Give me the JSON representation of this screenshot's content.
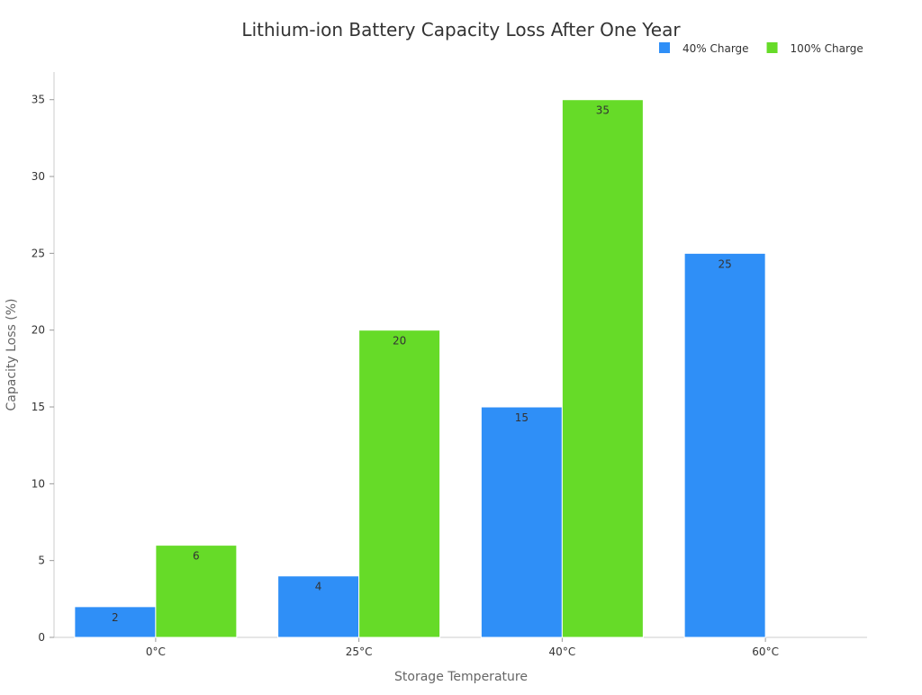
{
  "chart_data": {
    "type": "bar",
    "title": "Lithium-ion Battery Capacity Loss After One Year",
    "xlabel": "Storage Temperature",
    "ylabel": "Capacity Loss (%)",
    "categories": [
      "0°C",
      "25°C",
      "40°C",
      "60°C"
    ],
    "series": [
      {
        "name": "40% Charge",
        "color": "#2F8FF7",
        "values": [
          2,
          4,
          15,
          25
        ]
      },
      {
        "name": "100% Charge",
        "color": "#66DB28",
        "values": [
          6,
          20,
          35,
          null
        ]
      }
    ],
    "ylim": [
      0,
      36.8
    ],
    "yticks": [
      0,
      5,
      10,
      15,
      20,
      25,
      30,
      35
    ],
    "grid": false,
    "legend": "top-right",
    "data_labels": true
  }
}
